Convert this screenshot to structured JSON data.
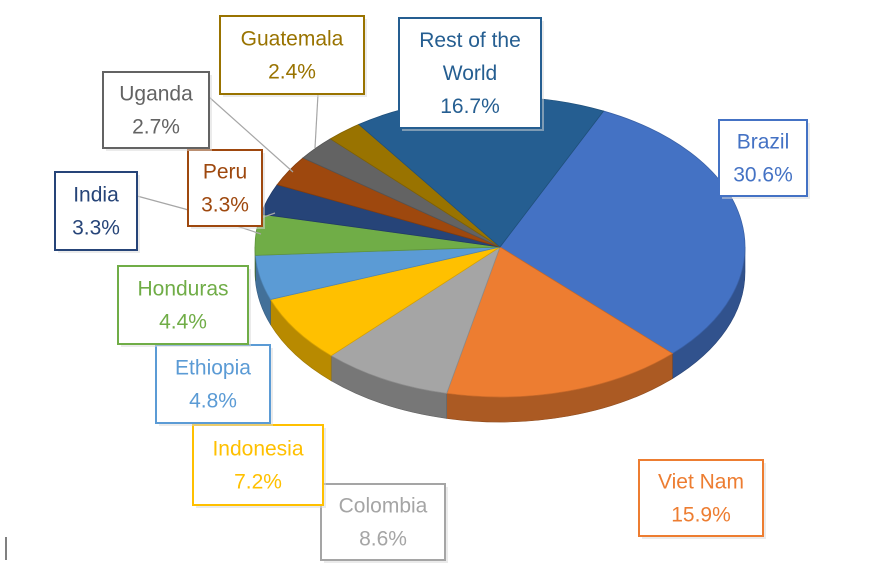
{
  "chart_data": {
    "type": "pie",
    "style": "3d",
    "title": "",
    "slices": [
      {
        "name": "Brazil",
        "value": 30.6,
        "label": "30.6%",
        "color": "#4472C4"
      },
      {
        "name": "Viet Nam",
        "value": 15.9,
        "label": "15.9%",
        "color": "#ED7D31"
      },
      {
        "name": "Colombia",
        "value": 8.6,
        "label": "8.6%",
        "color": "#A5A5A5"
      },
      {
        "name": "Indonesia",
        "value": 7.2,
        "label": "7.2%",
        "color": "#FFC000"
      },
      {
        "name": "Ethiopia",
        "value": 4.8,
        "label": "4.8%",
        "color": "#5B9BD5"
      },
      {
        "name": "Honduras",
        "value": 4.4,
        "label": "4.4%",
        "color": "#70AD47"
      },
      {
        "name": "India",
        "value": 3.3,
        "label": "3.3%",
        "color": "#264478"
      },
      {
        "name": "Peru",
        "value": 3.3,
        "label": "3.3%",
        "color": "#9E480E"
      },
      {
        "name": "Uganda",
        "value": 2.7,
        "label": "2.7%",
        "color": "#636363"
      },
      {
        "name": "Guatemala",
        "value": 2.4,
        "label": "2.4%",
        "color": "#997300"
      },
      {
        "name": "Rest of the World",
        "value": 16.7,
        "label": "16.7%",
        "color": "#255E91"
      }
    ]
  }
}
